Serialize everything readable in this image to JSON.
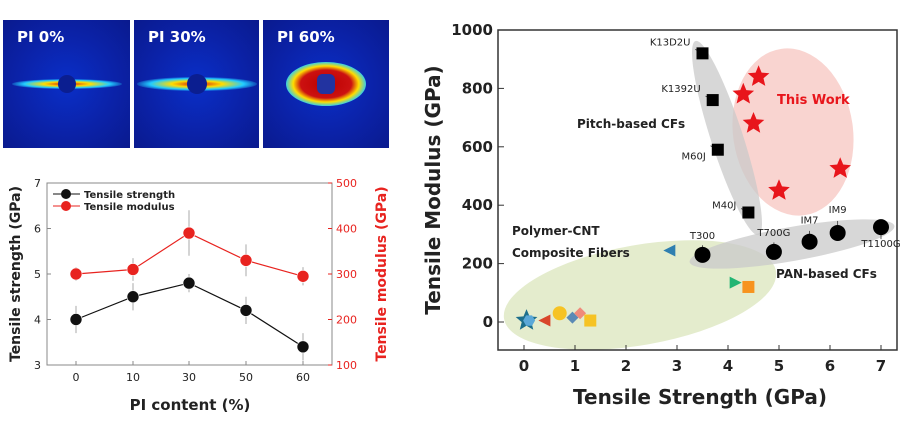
{
  "saxs_panels": [
    {
      "label": "PI 0%"
    },
    {
      "label": "PI 30%"
    },
    {
      "label": "PI 60%"
    }
  ],
  "chart_data": [
    {
      "type": "line",
      "xlabel": "PI content (%)",
      "ylabel": "Tensile strength (GPa)",
      "y2label": "Tensile modulus (GPa)",
      "categories": [
        "0",
        "10",
        "30",
        "50",
        "60"
      ],
      "ylim": [
        3,
        7
      ],
      "yticks": [
        "3",
        "4",
        "5",
        "6",
        "7"
      ],
      "y2lim": [
        100,
        500
      ],
      "y2ticks": [
        "100",
        "200",
        "300",
        "400",
        "500"
      ],
      "legend": "top-left",
      "series": [
        {
          "name": "Tensile strength",
          "axis": "left",
          "color": "#111111",
          "values": [
            4.0,
            4.5,
            4.8,
            4.2,
            3.4
          ],
          "errors": [
            0.3,
            0.3,
            0.2,
            0.3,
            0.3
          ]
        },
        {
          "name": "Tensile modulus",
          "axis": "right",
          "color": "#e8231f",
          "values": [
            300,
            310,
            390,
            330,
            295
          ],
          "errors": [
            15,
            25,
            50,
            35,
            20
          ]
        }
      ]
    },
    {
      "type": "scatter",
      "xlabel": "Tensile Strength (GPa)",
      "ylabel": "Tensile Modulus (GPa)",
      "xlim": [
        -0.5,
        7.3
      ],
      "ylim": [
        -120,
        1000
      ],
      "xticks": [
        "0",
        "1",
        "2",
        "3",
        "4",
        "5",
        "6",
        "7"
      ],
      "yticks": [
        "0",
        "200",
        "400",
        "600",
        "800",
        "1000"
      ],
      "group_labels": {
        "pitch": "Pitch-based CFs",
        "pan": "PAN-based CFs",
        "cnt1": "Polymer-CNT",
        "cnt2": "Composite Fibers",
        "this": "This Work"
      },
      "series": [
        {
          "group": "pitch",
          "marker": "square",
          "color": "#000000",
          "points": [
            {
              "label": "K13D2U",
              "x": 3.5,
              "y": 920
            },
            {
              "label": "K1392U",
              "x": 3.7,
              "y": 760
            },
            {
              "label": "M60J",
              "x": 3.8,
              "y": 590
            },
            {
              "label": "M40J",
              "x": 4.4,
              "y": 375
            }
          ]
        },
        {
          "group": "pan",
          "marker": "circle",
          "color": "#000000",
          "points": [
            {
              "label": "T300",
              "x": 3.5,
              "y": 230
            },
            {
              "label": "T700G",
              "x": 4.9,
              "y": 240
            },
            {
              "label": "IM7",
              "x": 5.6,
              "y": 275
            },
            {
              "label": "IM9",
              "x": 6.15,
              "y": 305
            },
            {
              "label": "T1100G",
              "x": 7.0,
              "y": 325
            }
          ]
        },
        {
          "group": "this",
          "marker": "star",
          "color": "#e8151b",
          "points": [
            {
              "x": 4.6,
              "y": 840
            },
            {
              "x": 4.3,
              "y": 780
            },
            {
              "x": 4.5,
              "y": 680
            },
            {
              "x": 6.2,
              "y": 525
            },
            {
              "x": 5.0,
              "y": 450
            }
          ]
        },
        {
          "group": "cnt",
          "marker": "mixed",
          "points": [
            {
              "x": 2.85,
              "y": 245,
              "marker": "triangle-left",
              "color": "#2f7fb0"
            },
            {
              "x": 4.15,
              "y": 135,
              "marker": "triangle-right",
              "color": "#22b573"
            },
            {
              "x": 4.4,
              "y": 120,
              "marker": "square",
              "color": "#f7931e"
            },
            {
              "x": 0.05,
              "y": 5,
              "marker": "star",
              "color": "#1d6f8c"
            },
            {
              "x": 0.1,
              "y": 5,
              "marker": "hexagon",
              "color": "#5ba8d8"
            },
            {
              "x": 0.4,
              "y": 5,
              "marker": "triangle-left",
              "color": "#d9462b"
            },
            {
              "x": 0.7,
              "y": 30,
              "marker": "circle",
              "color": "#f6c324"
            },
            {
              "x": 0.95,
              "y": 15,
              "marker": "diamond",
              "color": "#5b8ab5"
            },
            {
              "x": 1.1,
              "y": 30,
              "marker": "diamond",
              "color": "#f08a7a"
            },
            {
              "x": 1.3,
              "y": 5,
              "marker": "square",
              "color": "#f6c324"
            }
          ]
        }
      ]
    }
  ]
}
